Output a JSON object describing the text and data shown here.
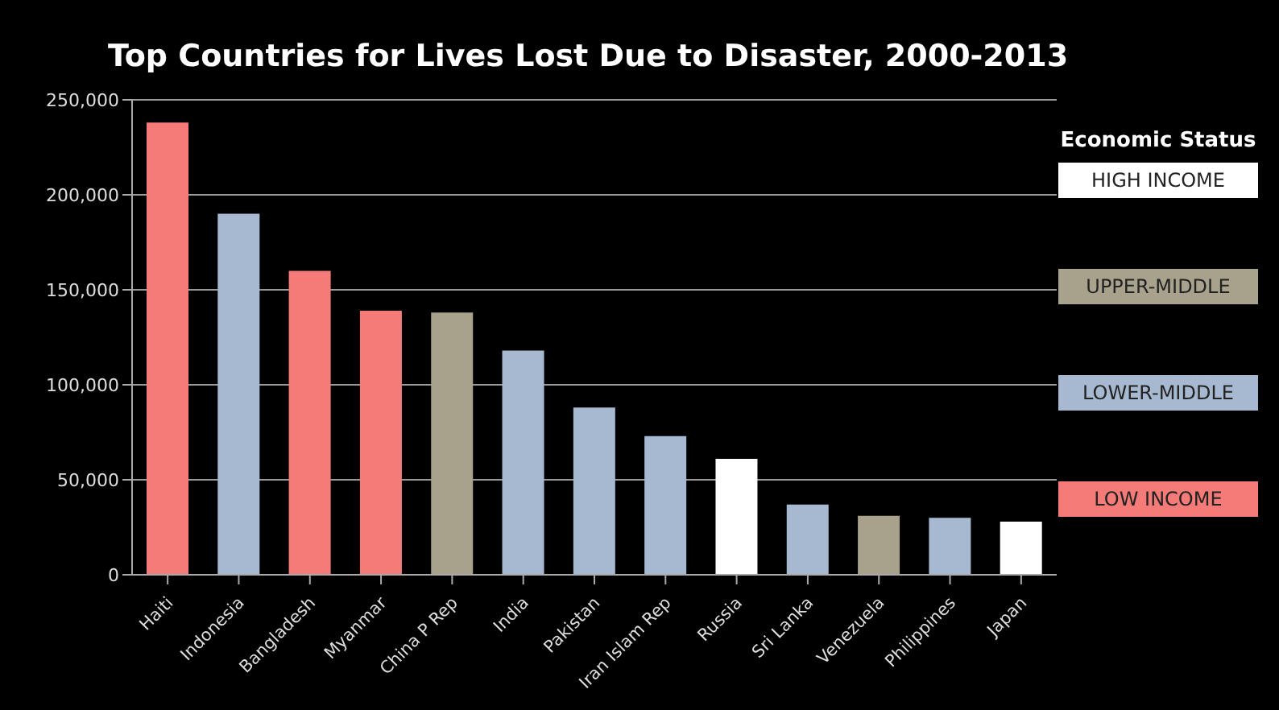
{
  "chart_data": {
    "type": "bar",
    "title": "Top Countries for Lives Lost Due to Disaster, 2000-2013",
    "categories": [
      "Haiti",
      "Indonesia",
      "Bangladesh",
      "Myanmar",
      "China P Rep",
      "India",
      "Pakistan",
      "Iran Islam Rep",
      "Russia",
      "Sri Lanka",
      "Venezuela",
      "Philippines",
      "Japan"
    ],
    "stacked": true,
    "series": [
      {
        "name": "HIGH INCOME",
        "color": "#ffffff",
        "values": [
          null,
          null,
          null,
          null,
          null,
          null,
          null,
          null,
          61000,
          null,
          null,
          null,
          28000
        ]
      },
      {
        "name": "UPPER-MIDDLE",
        "color": "#a8a18b",
        "values": [
          null,
          null,
          null,
          null,
          138000,
          null,
          null,
          null,
          null,
          null,
          31000,
          null,
          null
        ]
      },
      {
        "name": "LOWER-MIDDLE",
        "color": "#a7b9d0",
        "values": [
          null,
          190000,
          null,
          null,
          null,
          118000,
          88000,
          73000,
          null,
          37000,
          null,
          30000,
          null
        ]
      },
      {
        "name": "LOW INCOME",
        "color": "#f47b78",
        "values": [
          238000,
          null,
          160000,
          139000,
          null,
          null,
          null,
          null,
          null,
          null,
          null,
          null,
          null
        ]
      }
    ],
    "legend_title": "Economic Status",
    "legend": "right",
    "ylim": [
      0,
      250000
    ],
    "yticks": [
      {
        "value": 0,
        "label": "0"
      },
      {
        "value": 50000,
        "label": "50,000"
      },
      {
        "value": 100000,
        "label": "100,000"
      },
      {
        "value": 150000,
        "label": "150,000"
      },
      {
        "value": 200000,
        "label": "200,000"
      },
      {
        "value": 250000,
        "label": "250,000"
      }
    ],
    "grid": "y"
  }
}
